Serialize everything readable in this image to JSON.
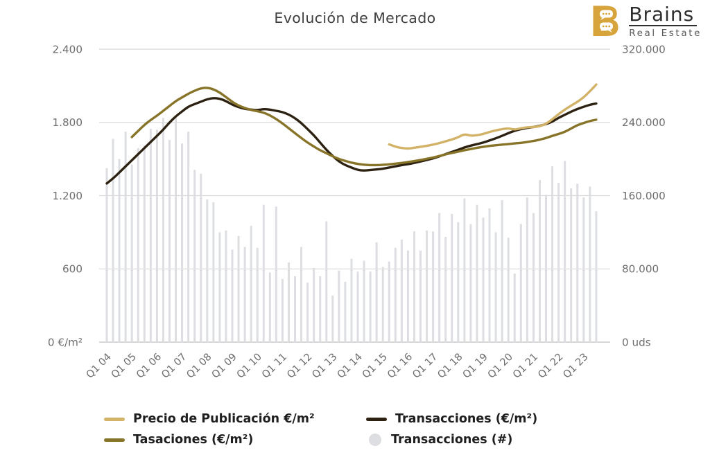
{
  "title": "Evolución de Mercado",
  "logo": {
    "brand": "Brains",
    "subtitle": "Real Estate"
  },
  "colors": {
    "precio": "#d2b266",
    "tasaciones": "#877428",
    "transacciones_line": "#2d2212",
    "bars": "#dcdee1",
    "grid": "#d8d8d8",
    "baseline": "#c9c9c9",
    "axis_text": "#6e6e6e",
    "title_text": "#404040",
    "legend_text": "#1f1f1f",
    "logo_gold": "#d7a43c"
  },
  "axes": {
    "left": {
      "unit": "€/m²",
      "ticks": [
        {
          "label": "2.400",
          "value": 2400
        },
        {
          "label": "1.800",
          "value": 1800
        },
        {
          "label": "1.200",
          "value": 1200
        },
        {
          "label": "600",
          "value": 600
        },
        {
          "label": "0 €/m²",
          "value": 0
        }
      ]
    },
    "right": {
      "unit": "uds",
      "ticks": [
        {
          "label": "320.000",
          "value": 320000
        },
        {
          "label": "240.000",
          "value": 240000
        },
        {
          "label": "160.000",
          "value": 160000
        },
        {
          "label": "80.000",
          "value": 80000
        },
        {
          "label": "0 uds",
          "value": 0
        }
      ]
    },
    "x": {
      "tick_labels": [
        "Q1 04",
        "Q1 05",
        "Q1 06",
        "Q1 07",
        "Q1 08",
        "Q1 09",
        "Q1 10",
        "Q1 11",
        "Q1 12",
        "Q1 13",
        "Q1 14",
        "Q1 15",
        "Q1 16",
        "Q1 17",
        "Q1 18",
        "Q1 19",
        "Q1 20",
        "Q1 21",
        "Q1 22",
        "Q1 23"
      ],
      "tick_every_quarters": 4
    }
  },
  "legend": {
    "columns": [
      [
        {
          "id": "precio-publicacion",
          "label": "Precio de Publicación €/m²",
          "shape": "line",
          "color": "#d2b266"
        },
        {
          "id": "tasaciones",
          "label": "Tasaciones (€/m²)",
          "shape": "line",
          "color": "#877428"
        }
      ],
      [
        {
          "id": "transacciones-precio",
          "label": "Transacciones (€/m²)",
          "shape": "line",
          "color": "#2d2212"
        },
        {
          "id": "transacciones-numero",
          "label": "Transacciones (#)",
          "shape": "circle",
          "color": "#dcdee1"
        }
      ]
    ]
  },
  "chart_data": {
    "type": "combo: quarterly bars (right axis) + 3 smoothed lines (left axis)",
    "title": "Evolución de Mercado",
    "left_axis_range": [
      0,
      2400
    ],
    "right_axis_range": [
      0,
      320000
    ],
    "grid": "horizontal only",
    "legend_position": "bottom",
    "x_quarters": [
      "2004Q1",
      "2004Q2",
      "2004Q3",
      "2004Q4",
      "2005Q1",
      "2005Q2",
      "2005Q3",
      "2005Q4",
      "2006Q1",
      "2006Q2",
      "2006Q3",
      "2006Q4",
      "2007Q1",
      "2007Q2",
      "2007Q3",
      "2007Q4",
      "2008Q1",
      "2008Q2",
      "2008Q3",
      "2008Q4",
      "2009Q1",
      "2009Q2",
      "2009Q3",
      "2009Q4",
      "2010Q1",
      "2010Q2",
      "2010Q3",
      "2010Q4",
      "2011Q1",
      "2011Q2",
      "2011Q3",
      "2011Q4",
      "2012Q1",
      "2012Q2",
      "2012Q3",
      "2012Q4",
      "2013Q1",
      "2013Q2",
      "2013Q3",
      "2013Q4",
      "2014Q1",
      "2014Q2",
      "2014Q3",
      "2014Q4",
      "2015Q1",
      "2015Q2",
      "2015Q3",
      "2015Q4",
      "2016Q1",
      "2016Q2",
      "2016Q3",
      "2016Q4",
      "2017Q1",
      "2017Q2",
      "2017Q3",
      "2017Q4",
      "2018Q1",
      "2018Q2",
      "2018Q3",
      "2018Q4",
      "2019Q1",
      "2019Q2",
      "2019Q3",
      "2019Q4",
      "2020Q1",
      "2020Q2",
      "2020Q3",
      "2020Q4",
      "2021Q1",
      "2021Q2",
      "2021Q3",
      "2021Q4",
      "2022Q1",
      "2022Q2",
      "2022Q3",
      "2022Q4",
      "2023Q1",
      "2023Q2",
      "2023Q3"
    ],
    "bars": {
      "name": "Transacciones (#)",
      "axis": "right",
      "unit": "uds",
      "values": [
        190000,
        222000,
        200000,
        230000,
        194000,
        212000,
        215000,
        233000,
        232000,
        245000,
        221000,
        246000,
        217000,
        230000,
        188000,
        184000,
        156000,
        153000,
        120000,
        122000,
        101000,
        116000,
        104000,
        127000,
        103000,
        150000,
        76000,
        148000,
        69000,
        87000,
        72000,
        104000,
        65000,
        81000,
        72000,
        132000,
        51000,
        78000,
        66000,
        91000,
        77000,
        89000,
        77000,
        109000,
        82000,
        88000,
        103000,
        112000,
        100000,
        121000,
        100000,
        122000,
        121000,
        141000,
        115000,
        140000,
        131000,
        157000,
        129000,
        150000,
        136000,
        146000,
        120000,
        155000,
        114000,
        75000,
        129000,
        158000,
        141000,
        177000,
        161000,
        192000,
        174000,
        198000,
        168000,
        173000,
        158000,
        170000,
        143000
      ]
    },
    "series": [
      {
        "name": "Transacciones (€/m²)",
        "axis": "left",
        "unit": "€/m²",
        "color": "#2d2212",
        "start_quarter": "2004Q1",
        "start_index": 0,
        "values": [
          1300,
          1340,
          1390,
          1440,
          1490,
          1540,
          1590,
          1640,
          1690,
          1740,
          1800,
          1850,
          1890,
          1930,
          1950,
          1970,
          1990,
          2000,
          1995,
          1975,
          1945,
          1925,
          1910,
          1905,
          1900,
          1910,
          1905,
          1895,
          1885,
          1865,
          1835,
          1795,
          1745,
          1695,
          1635,
          1575,
          1525,
          1480,
          1450,
          1430,
          1410,
          1405,
          1410,
          1415,
          1420,
          1430,
          1440,
          1450,
          1458,
          1468,
          1480,
          1492,
          1505,
          1522,
          1540,
          1558,
          1575,
          1595,
          1610,
          1622,
          1635,
          1652,
          1670,
          1690,
          1712,
          1732,
          1745,
          1755,
          1762,
          1772,
          1786,
          1805,
          1838,
          1862,
          1888,
          1910,
          1928,
          1945,
          1955
        ]
      },
      {
        "name": "Tasaciones (€/m²)",
        "axis": "left",
        "unit": "€/m²",
        "color": "#877428",
        "start_quarter": "2005Q1",
        "start_index": 4,
        "values": [
          1680,
          1730,
          1780,
          1820,
          1855,
          1895,
          1935,
          1975,
          2005,
          2035,
          2060,
          2080,
          2085,
          2072,
          2045,
          2008,
          1968,
          1938,
          1918,
          1902,
          1892,
          1880,
          1858,
          1828,
          1792,
          1752,
          1712,
          1672,
          1635,
          1602,
          1572,
          1548,
          1522,
          1500,
          1485,
          1470,
          1460,
          1453,
          1450,
          1450,
          1452,
          1456,
          1462,
          1468,
          1475,
          1483,
          1492,
          1502,
          1512,
          1525,
          1538,
          1550,
          1560,
          1572,
          1582,
          1592,
          1600,
          1608,
          1613,
          1618,
          1622,
          1628,
          1632,
          1640,
          1648,
          1658,
          1672,
          1690,
          1705,
          1722,
          1750,
          1778,
          1795,
          1812,
          1822
        ]
      },
      {
        "name": "Precio de Publicación €/m²",
        "axis": "left",
        "unit": "€/m²",
        "color": "#d2b266",
        "start_quarter": "2015Q2",
        "start_index": 45,
        "values": [
          1620,
          1600,
          1590,
          1585,
          1592,
          1600,
          1608,
          1618,
          1630,
          1645,
          1660,
          1678,
          1705,
          1690,
          1695,
          1705,
          1722,
          1735,
          1745,
          1752,
          1740,
          1752,
          1760,
          1762,
          1768,
          1788,
          1825,
          1868,
          1905,
          1938,
          1968,
          2005,
          2055,
          2110
        ]
      }
    ]
  }
}
